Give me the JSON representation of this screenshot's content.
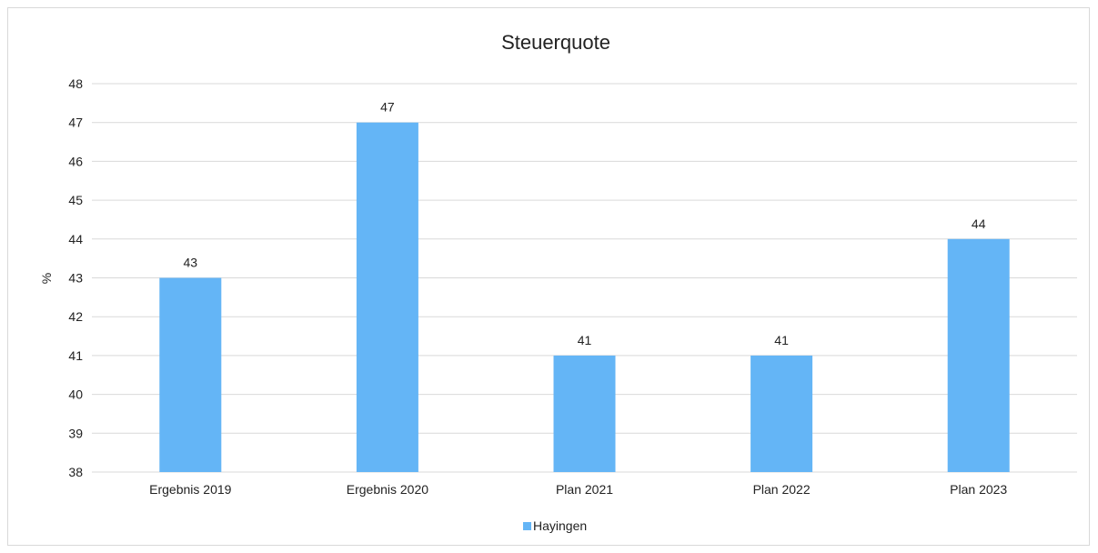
{
  "chart_data": {
    "type": "bar",
    "title": "Steuerquote",
    "xlabel": "",
    "ylabel": "%",
    "categories": [
      "Ergebnis 2019",
      "Ergebnis 2020",
      "Plan 2021",
      "Plan 2022",
      "Plan 2023"
    ],
    "series": [
      {
        "name": "Hayingen",
        "values": [
          43,
          47,
          41,
          41,
          44
        ],
        "color": "#64b5f6"
      }
    ],
    "ylim": [
      38,
      48
    ],
    "yticks": [
      38,
      39,
      40,
      41,
      42,
      43,
      44,
      45,
      46,
      47,
      48
    ],
    "grid": true,
    "legend": "bottom",
    "data_labels": true
  }
}
